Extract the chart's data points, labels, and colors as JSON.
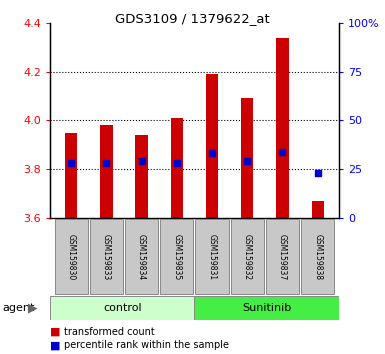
{
  "title": "GDS3109 / 1379622_at",
  "samples": [
    "GSM159830",
    "GSM159833",
    "GSM159834",
    "GSM159835",
    "GSM159831",
    "GSM159832",
    "GSM159837",
    "GSM159838"
  ],
  "bar_bottoms": [
    3.6,
    3.6,
    3.6,
    3.6,
    3.6,
    3.6,
    3.6,
    3.6
  ],
  "bar_tops": [
    3.95,
    3.98,
    3.94,
    4.01,
    4.19,
    4.09,
    4.34,
    3.67
  ],
  "percentile_values": [
    3.825,
    3.825,
    3.835,
    3.825,
    3.865,
    3.835,
    3.87,
    3.785
  ],
  "bar_color": "#cc0000",
  "percentile_color": "#0000cc",
  "ylim": [
    3.6,
    4.4
  ],
  "y_left_ticks": [
    3.6,
    3.8,
    4.0,
    4.2,
    4.4
  ],
  "y_right_ticks": [
    0,
    25,
    50,
    75,
    100
  ],
  "y_right_labels": [
    "0",
    "25",
    "50",
    "75",
    "100%"
  ],
  "grid_yticks": [
    3.8,
    4.0,
    4.2
  ],
  "bar_width": 0.35,
  "sample_box_color": "#c8c8c8",
  "group_control_color": "#ccffcc",
  "group_sunitinib_color": "#44ee44",
  "legend_items": [
    {
      "label": "transformed count",
      "color": "#cc0000"
    },
    {
      "label": "percentile rank within the sample",
      "color": "#0000cc"
    }
  ]
}
